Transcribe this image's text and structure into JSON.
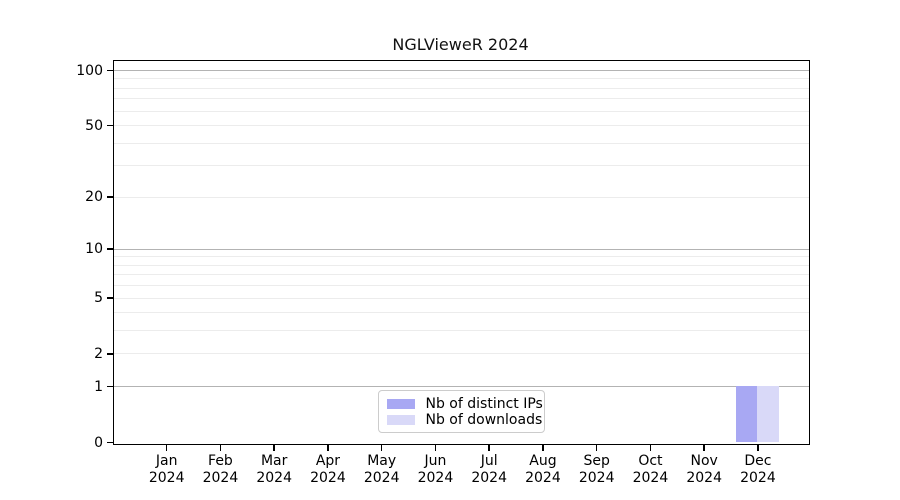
{
  "title": "NGLVieweR 2024",
  "chart_data": {
    "type": "bar",
    "title": "NGLVieweR 2024",
    "categories": [
      "Jan",
      "Feb",
      "Mar",
      "Apr",
      "May",
      "Jun",
      "Jul",
      "Aug",
      "Sep",
      "Oct",
      "Nov",
      "Dec"
    ],
    "year": "2024",
    "series": [
      {
        "name": "Nb of distinct IPs",
        "color": "#a8a8f3",
        "values": [
          0,
          0,
          0,
          0,
          0,
          0,
          0,
          0,
          0,
          0,
          0,
          1
        ]
      },
      {
        "name": "Nb of downloads",
        "color": "#d9d9f8",
        "values": [
          0,
          0,
          0,
          0,
          0,
          0,
          0,
          0,
          0,
          0,
          0,
          1
        ]
      }
    ],
    "xlabel": "",
    "ylabel": "",
    "yscale": "log1p",
    "ylim": [
      0,
      113
    ],
    "yticks": [
      0,
      1,
      2,
      5,
      10,
      20,
      50,
      100
    ],
    "major_gridlines": [
      1,
      10,
      100
    ],
    "minor_gridlines": [
      2,
      3,
      4,
      5,
      6,
      7,
      8,
      9,
      20,
      30,
      40,
      50,
      60,
      70,
      80,
      90
    ],
    "grid": true,
    "legend_position": "lower center inside",
    "colors": {
      "major_grid": "#b3b3b3",
      "minor_grid": "#ececec",
      "axis": "#000000",
      "background": "#ffffff"
    }
  }
}
